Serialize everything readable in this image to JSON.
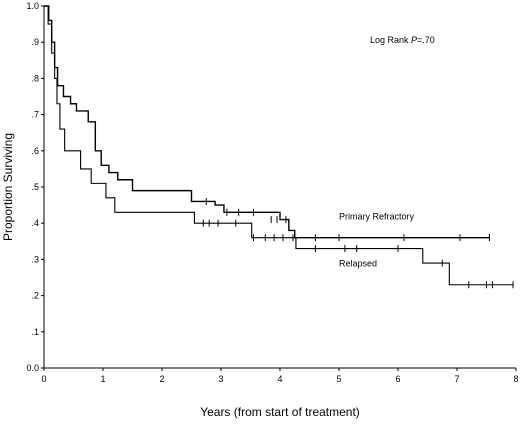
{
  "chart_data": {
    "type": "line",
    "subtype": "kaplan-meier step curves with censor marks",
    "xlabel": "Years (from start of treatment)",
    "ylabel": "Proportion Surviving",
    "xlim": [
      0,
      8
    ],
    "ylim": [
      0,
      1
    ],
    "x_ticks": [
      "0",
      "1",
      "2",
      "3",
      "4",
      "5",
      "6",
      "7",
      "8"
    ],
    "y_ticks": [
      "0.0",
      ".1",
      ".2",
      ".3",
      ".4",
      ".5",
      ".6",
      ".7",
      ".8",
      ".9",
      "1.0"
    ],
    "grid": false,
    "annotation": {
      "prefix": "Log Rank ",
      "p_label": "P",
      "suffix": "=.70"
    },
    "series": [
      {
        "name": "Primary Refractory",
        "color": "#000000",
        "steps": [
          [
            0,
            1.0
          ],
          [
            0.08,
            0.96
          ],
          [
            0.13,
            0.9
          ],
          [
            0.18,
            0.83
          ],
          [
            0.23,
            0.78
          ],
          [
            0.33,
            0.75
          ],
          [
            0.45,
            0.73
          ],
          [
            0.55,
            0.71
          ],
          [
            0.75,
            0.68
          ],
          [
            0.87,
            0.6
          ],
          [
            0.97,
            0.56
          ],
          [
            1.1,
            0.54
          ],
          [
            1.25,
            0.52
          ],
          [
            1.5,
            0.49
          ],
          [
            2.2,
            0.49
          ],
          [
            2.5,
            0.46
          ],
          [
            2.9,
            0.45
          ],
          [
            3.05,
            0.43
          ],
          [
            4.0,
            0.41
          ],
          [
            4.15,
            0.38
          ],
          [
            4.25,
            0.36
          ],
          [
            7.55,
            0.36
          ]
        ],
        "censored": [
          [
            2.75,
            0.46
          ],
          [
            3.1,
            0.43
          ],
          [
            3.3,
            0.43
          ],
          [
            3.55,
            0.43
          ],
          [
            3.85,
            0.41
          ],
          [
            3.95,
            0.41
          ],
          [
            4.1,
            0.41
          ],
          [
            4.22,
            0.36
          ],
          [
            4.6,
            0.36
          ],
          [
            5.0,
            0.36
          ],
          [
            6.1,
            0.36
          ],
          [
            7.05,
            0.36
          ],
          [
            7.55,
            0.36
          ]
        ]
      },
      {
        "name": "Relapsed",
        "color": "#000000",
        "steps": [
          [
            0,
            1.0
          ],
          [
            0.07,
            0.95
          ],
          [
            0.13,
            0.87
          ],
          [
            0.18,
            0.8
          ],
          [
            0.22,
            0.73
          ],
          [
            0.27,
            0.66
          ],
          [
            0.35,
            0.6
          ],
          [
            0.62,
            0.55
          ],
          [
            0.8,
            0.51
          ],
          [
            1.05,
            0.47
          ],
          [
            1.2,
            0.43
          ],
          [
            2.5,
            0.43
          ],
          [
            2.55,
            0.4
          ],
          [
            3.5,
            0.4
          ],
          [
            3.52,
            0.36
          ],
          [
            4.25,
            0.36
          ],
          [
            4.27,
            0.33
          ],
          [
            6.4,
            0.33
          ],
          [
            6.42,
            0.29
          ],
          [
            6.85,
            0.29
          ],
          [
            6.87,
            0.23
          ],
          [
            7.95,
            0.23
          ]
        ],
        "censored": [
          [
            2.7,
            0.4
          ],
          [
            2.8,
            0.4
          ],
          [
            2.95,
            0.4
          ],
          [
            3.25,
            0.4
          ],
          [
            3.55,
            0.36
          ],
          [
            3.75,
            0.36
          ],
          [
            3.9,
            0.36
          ],
          [
            4.05,
            0.36
          ],
          [
            4.6,
            0.33
          ],
          [
            5.1,
            0.33
          ],
          [
            5.3,
            0.33
          ],
          [
            6.0,
            0.33
          ],
          [
            6.75,
            0.29
          ],
          [
            7.2,
            0.23
          ],
          [
            7.5,
            0.23
          ],
          [
            7.6,
            0.23
          ],
          [
            7.95,
            0.23
          ]
        ]
      }
    ],
    "line_labels": [
      {
        "series": "Primary Refractory",
        "text": "Primary Refractory",
        "x": 5.0,
        "y": 0.41
      },
      {
        "series": "Relapsed",
        "text": "Relapsed",
        "x": 5.0,
        "y": 0.28
      }
    ]
  }
}
